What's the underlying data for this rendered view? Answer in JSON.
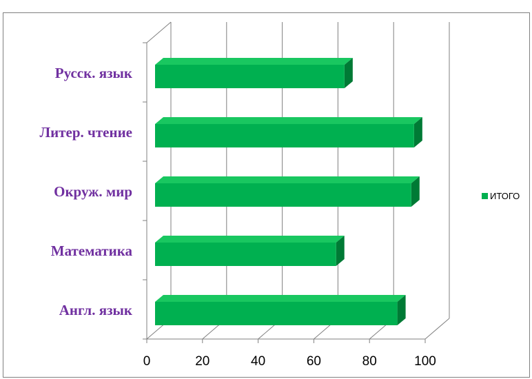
{
  "chart_data": {
    "type": "bar",
    "orientation": "horizontal",
    "title": "",
    "categories": [
      "Русск. язык",
      "Литер. чтение",
      "Окруж. мир",
      "Математика",
      "Англ. язык"
    ],
    "series": [
      {
        "name": "ИТОГО",
        "values": [
          71,
          96,
          95,
          68,
          90
        ]
      }
    ],
    "xticks": [
      "0",
      "20",
      "40",
      "60",
      "80",
      "100"
    ],
    "xlim": [
      0,
      100
    ],
    "grid": true,
    "legend": "right",
    "colors": {
      "bar_front": "#00b050",
      "bar_top": "#19c760",
      "bar_side": "#007a35",
      "category_text": "#7030a0",
      "grid": "#7f7f7f"
    }
  }
}
